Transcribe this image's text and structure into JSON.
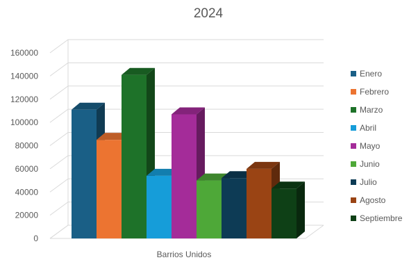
{
  "chart_data": {
    "type": "bar",
    "title": "2024",
    "categories": [
      "Barrios Unidos"
    ],
    "series": [
      {
        "name": "Enero",
        "values": [
          111000
        ],
        "color": "#1a5f86"
      },
      {
        "name": "Febrero",
        "values": [
          85000
        ],
        "color": "#ec7431"
      },
      {
        "name": "Marzo",
        "values": [
          141000
        ],
        "color": "#1e7229"
      },
      {
        "name": "Abril",
        "values": [
          54000
        ],
        "color": "#169dd9"
      },
      {
        "name": "Mayo",
        "values": [
          107000
        ],
        "color": "#a42c99"
      },
      {
        "name": "Junio",
        "values": [
          50000
        ],
        "color": "#4ea838"
      },
      {
        "name": "Julio",
        "values": [
          52000
        ],
        "color": "#0d3b55"
      },
      {
        "name": "Agosto",
        "values": [
          60000
        ],
        "color": "#9a4414"
      },
      {
        "name": "Septiembre",
        "values": [
          43000
        ],
        "color": "#0e4016"
      }
    ],
    "ylim": [
      0,
      160000
    ],
    "yticks": [
      0,
      20000,
      40000,
      60000,
      80000,
      100000,
      120000,
      140000,
      160000
    ],
    "grid": true,
    "legend": "right",
    "style": "3d-column"
  }
}
